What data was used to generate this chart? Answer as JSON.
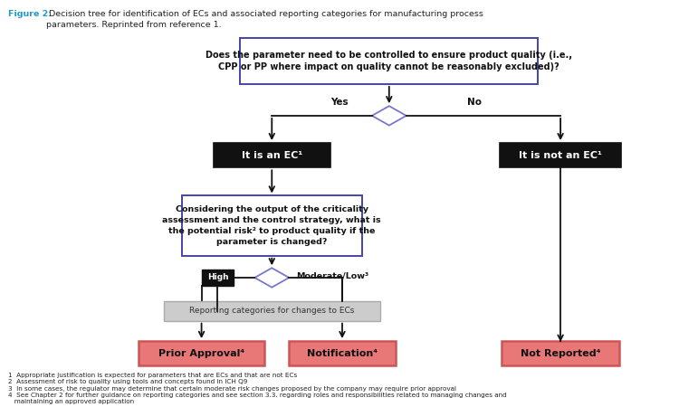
{
  "figure_label": "Figure 2:",
  "figure_caption": " Decision tree for identification of ECs and associated reporting categories for manufacturing process\nparameters. Reprinted from reference 1.",
  "top_box": "Does the parameter need to be controlled to ensure product quality (i.e.,\nCPP or PP where impact on quality cannot be reasonably excluded)?",
  "yes_label": "Yes",
  "no_label": "No",
  "ec_box": "It is an EC¹",
  "not_ec_box": "It is not an EC¹",
  "risk_box": "Considering the output of the criticality\nassessment and the control strategy, what is\nthe potential risk² to product quality if the\nparameter is changed?",
  "high_label": "High",
  "mod_low_label": "Moderate/Low³",
  "reporting_box": "Reporting categories for changes to ECs",
  "prior_approval": "Prior Approval⁴",
  "notification": "Notification⁴",
  "not_reported": "Not Reported⁴",
  "footnotes": [
    "1  Appropriate justification is expected for parameters that are ECs and that are not ECs",
    "2  Assessment of risk to quality using tools and concepts found in ICH Q9",
    "3  In some cases, the regulator may determine that certain moderate risk changes proposed by the company may require prior approval",
    "4  See Chapter 2 for further guidance on reporting categories and see section 3.3. regarding roles and responsibilities related to managing changes and\n   maintaining an approved application"
  ],
  "top_box_fill": "#FFFFFF",
  "top_box_edge": "#4444AA",
  "ec_box_fill": "#111111",
  "ec_box_text": "#FFFFFF",
  "not_ec_box_fill": "#111111",
  "not_ec_box_text": "#FFFFFF",
  "risk_box_fill": "#FFFFFF",
  "risk_box_edge": "#4444AA",
  "diamond_fill": "#FFFFFF",
  "diamond_edge": "#7777CC",
  "reporting_box_fill": "#CCCCCC",
  "reporting_box_edge": "#AAAAAA",
  "result_box_fill": "#E87878",
  "result_box_edge": "#CC5555",
  "result_box_text": "#111111",
  "arrow_color": "#111111",
  "fig_label_color": "#2299CC",
  "bg_color": "#FFFFFF"
}
